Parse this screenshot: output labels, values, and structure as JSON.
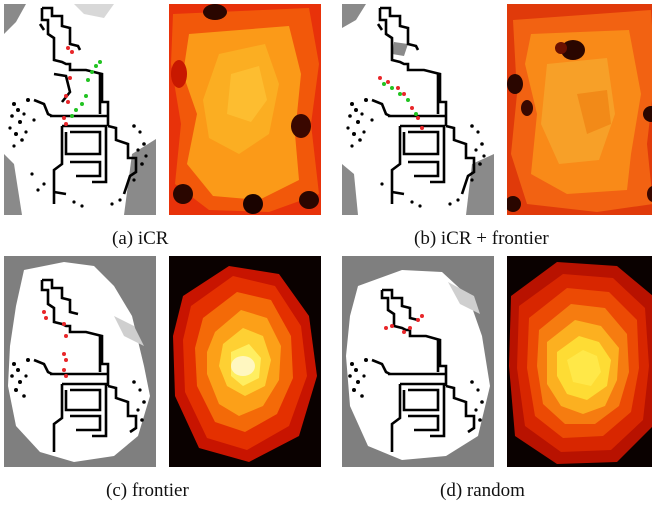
{
  "figure": {
    "panels": [
      {
        "id": "a",
        "caption": "(a) iCR"
      },
      {
        "id": "b",
        "caption": "(b) iCR + frontier"
      },
      {
        "id": "c",
        "caption": "(c) frontier"
      },
      {
        "id": "d",
        "caption": "(d) random"
      }
    ]
  },
  "colors": {
    "unknown": "#7f7f7f",
    "free": "#ffffff",
    "wall": "#000000",
    "path_red": "#e8262a",
    "path_green": "#22c322",
    "heat_dark": "#1a0300",
    "heat_red": "#d41a00",
    "heat_orange": "#f2580a",
    "heat_amber": "#fb9a18",
    "heat_yellow": "#ffe040",
    "heat_pale": "#fff7c0"
  }
}
